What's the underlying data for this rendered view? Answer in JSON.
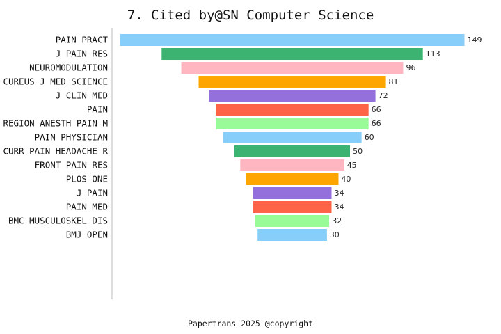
{
  "chart_data": {
    "type": "bar",
    "orientation": "horizontal-funnel",
    "title": "7. Cited by@SN Computer Science",
    "categories": [
      "PAIN PRACT",
      "J PAIN RES",
      "NEUROMODULATION",
      "CUREUS J MED SCIENCE",
      "J CLIN MED",
      "PAIN",
      "REGION ANESTH PAIN M",
      "PAIN PHYSICIAN",
      "CURR PAIN HEADACHE R",
      "FRONT PAIN RES",
      "PLOS ONE",
      "J PAIN",
      "PAIN MED",
      "BMC MUSCULOSKEL DIS",
      "BMJ OPEN"
    ],
    "values": [
      149,
      113,
      96,
      81,
      72,
      66,
      66,
      60,
      50,
      45,
      40,
      34,
      34,
      32,
      30
    ],
    "xlim": [
      0,
      149
    ],
    "xlabel": "",
    "ylabel": "",
    "grid": false,
    "colors": [
      "#87CEFA",
      "#3CB371",
      "#FFB6C1",
      "#FFA500",
      "#9370DB",
      "#FF6347",
      "#98FB98"
    ]
  },
  "footer": {
    "text": "Papertrans 2025 @copyright"
  }
}
